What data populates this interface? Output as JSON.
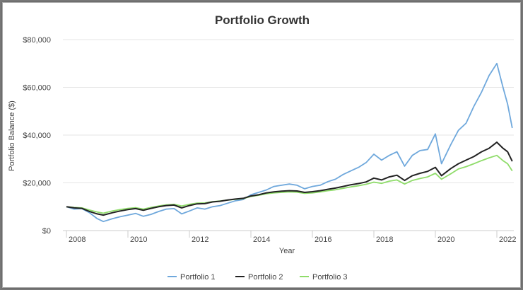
{
  "chart_data": {
    "type": "line",
    "title": "Portfolio Growth",
    "xlabel": "Year",
    "ylabel": "Portfolio Balance ($)",
    "xlim": [
      2007.9,
      2022.6
    ],
    "ylim": [
      0,
      80000
    ],
    "grid": true,
    "legend_position": "bottom",
    "x_ticks": [
      "2008",
      "2010",
      "2012",
      "2014",
      "2016",
      "2018",
      "2020",
      "2022"
    ],
    "y_ticks": [
      "$0",
      "$20,000",
      "$40,000",
      "$60,000",
      "$80,000"
    ],
    "x": [
      2008,
      2008.25,
      2008.5,
      2008.75,
      2009,
      2009.2,
      2009.5,
      2009.75,
      2010,
      2010.25,
      2010.5,
      2010.75,
      2011,
      2011.25,
      2011.5,
      2011.75,
      2012,
      2012.25,
      2012.5,
      2012.75,
      2013,
      2013.25,
      2013.5,
      2013.75,
      2014,
      2014.25,
      2014.5,
      2014.75,
      2015,
      2015.25,
      2015.5,
      2015.75,
      2016,
      2016.25,
      2016.5,
      2016.75,
      2017,
      2017.25,
      2017.5,
      2017.75,
      2018,
      2018.25,
      2018.5,
      2018.75,
      2019,
      2019.25,
      2019.5,
      2019.75,
      2020,
      2020.2,
      2020.5,
      2020.75,
      2021,
      2021.25,
      2021.5,
      2021.75,
      2022,
      2022.2,
      2022.35,
      2022.5
    ],
    "series": [
      {
        "name": "Portfolio 1",
        "color": "#6fa8dc",
        "values": [
          10000,
          9000,
          9200,
          7500,
          5000,
          3800,
          5000,
          5800,
          6500,
          7200,
          6000,
          6800,
          8000,
          9000,
          9200,
          7000,
          8200,
          9500,
          9000,
          10000,
          10500,
          11500,
          12500,
          13000,
          15000,
          16000,
          17000,
          18500,
          19000,
          19500,
          19000,
          17500,
          18500,
          19000,
          20500,
          21500,
          23500,
          25000,
          26500,
          28500,
          32000,
          29500,
          31500,
          33000,
          27000,
          31500,
          33500,
          34000,
          40500,
          28000,
          36000,
          42000,
          45000,
          52000,
          58000,
          65000,
          70000,
          60000,
          53000,
          43000
        ]
      },
      {
        "name": "Portfolio 2",
        "color": "#222222",
        "values": [
          10000,
          9500,
          9300,
          8000,
          7000,
          6500,
          7500,
          8200,
          8800,
          9200,
          8500,
          9300,
          10000,
          10500,
          10700,
          9500,
          10500,
          11200,
          11300,
          12000,
          12300,
          12800,
          13200,
          13500,
          14500,
          15000,
          15800,
          16200,
          16500,
          16700,
          16600,
          16000,
          16300,
          16700,
          17300,
          17800,
          18500,
          19200,
          19700,
          20400,
          22000,
          21200,
          22500,
          23200,
          21000,
          23000,
          24000,
          24800,
          26500,
          23000,
          26000,
          28000,
          29500,
          31000,
          33000,
          34500,
          37000,
          34500,
          33000,
          29000
        ]
      },
      {
        "name": "Portfolio 3",
        "color": "#8fdc6a",
        "values": [
          10000,
          9700,
          9500,
          8600,
          7800,
          7300,
          8200,
          8800,
          9300,
          9600,
          9000,
          9700,
          10300,
          10800,
          11000,
          10300,
          11000,
          11500,
          11600,
          12100,
          12400,
          12800,
          13100,
          13400,
          14300,
          14800,
          15400,
          15800,
          16000,
          16200,
          16100,
          15600,
          15800,
          16200,
          16700,
          17100,
          17700,
          18300,
          18800,
          19400,
          20300,
          19800,
          20700,
          21200,
          19500,
          21000,
          21800,
          22500,
          24000,
          21500,
          23800,
          25800,
          26800,
          28000,
          29300,
          30500,
          31500,
          29300,
          28000,
          25000
        ]
      }
    ]
  }
}
